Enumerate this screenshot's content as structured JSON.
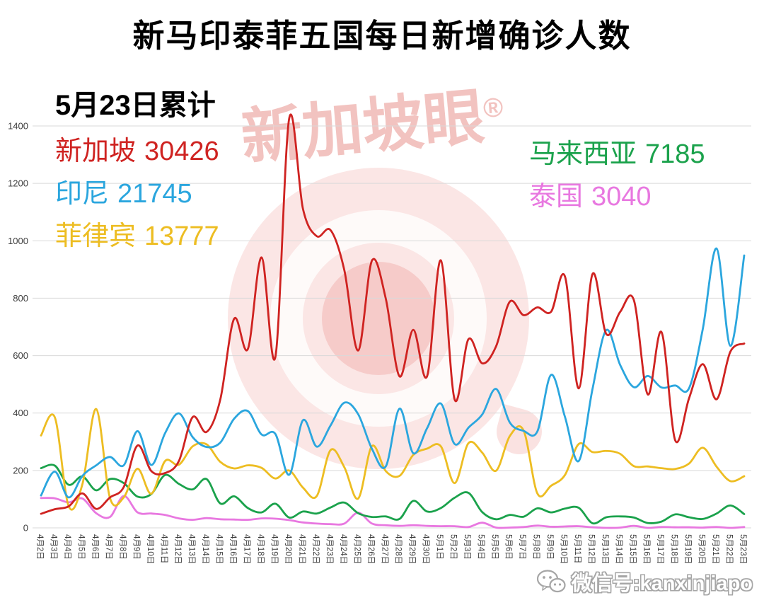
{
  "title": "新马印泰菲五国每日新增确诊人数",
  "summary": {
    "heading": "5月23日累计",
    "items": [
      {
        "label": "新加坡",
        "value": "30426",
        "color": "#cf2321"
      },
      {
        "label": "印尼",
        "value": "21745",
        "color": "#2ba6de"
      },
      {
        "label": "菲律宾",
        "value": "13777",
        "color": "#edbd22"
      },
      {
        "label": "马来西亚",
        "value": "7185",
        "color": "#1ba24c"
      },
      {
        "label": "泰国",
        "value": "3040",
        "color": "#e878e0"
      }
    ]
  },
  "watermark": {
    "text": "新加坡眼",
    "registered": "®"
  },
  "footer": {
    "wechat_label": "微信号:kanxinjiapo"
  },
  "chart_data": {
    "type": "line",
    "title": "新马印泰菲五国每日新增确诊人数",
    "xlabel": "",
    "ylabel": "",
    "ylim": [
      0,
      1400
    ],
    "yticks": [
      0,
      200,
      400,
      600,
      800,
      1000,
      1200,
      1400
    ],
    "grid": true,
    "legend_position": "custom-annotations",
    "categories": [
      "4月2日",
      "4月3日",
      "4月4日",
      "4月5日",
      "4月6日",
      "4月7日",
      "4月8日",
      "4月9日",
      "4月10日",
      "4月11日",
      "4月12日",
      "4月13日",
      "4月14日",
      "4月15日",
      "4月16日",
      "4月17日",
      "4月18日",
      "4月19日",
      "4月20日",
      "4月21日",
      "4月22日",
      "4月23日",
      "4月24日",
      "4月25日",
      "4月26日",
      "4月27日",
      "4月28日",
      "4月29日",
      "4月30日",
      "5月1日",
      "5月2日",
      "5月3日",
      "5月4日",
      "5月5日",
      "5月6日",
      "5月7日",
      "5月8日",
      "5月9日",
      "5月10日",
      "5月11日",
      "5月12日",
      "5月13日",
      "5月14日",
      "5月15日",
      "5月16日",
      "5月17日",
      "5月18日",
      "5月19日",
      "5月20日",
      "5月21日",
      "5月22日",
      "5月23日"
    ],
    "series": [
      {
        "name": "新加坡",
        "color": "#cf2321",
        "values": [
          49,
          65,
          75,
          120,
          66,
          106,
          142,
          287,
          198,
          191,
          233,
          386,
          334,
          447,
          728,
          623,
          942,
          596,
          1426,
          1111,
          1016,
          1037,
          897,
          618,
          931,
          799,
          528,
          690,
          528,
          932,
          447,
          657,
          573,
          632,
          788,
          741,
          768,
          753,
          876,
          486,
          884,
          675,
          752,
          793,
          465,
          682,
          305,
          451,
          570,
          448,
          614,
          642
        ]
      },
      {
        "name": "印尼",
        "color": "#2ba6de",
        "values": [
          113,
          196,
          106,
          181,
          218,
          247,
          218,
          337,
          219,
          330,
          399,
          316,
          282,
          297,
          380,
          407,
          325,
          327,
          185,
          375,
          283,
          357,
          436,
          396,
          275,
          214,
          415,
          260,
          347,
          433,
          292,
          349,
          395,
          484,
          367,
          338,
          336,
          533,
          387,
          233,
          484,
          689,
          568,
          490,
          529,
          489,
          496,
          486,
          693,
          973,
          634,
          949
        ]
      },
      {
        "name": "菲律宾",
        "color": "#edbd22",
        "values": [
          322,
          385,
          76,
          152,
          414,
          104,
          106,
          206,
          119,
          233,
          220,
          284,
          291,
          230,
          207,
          218,
          209,
          172,
          200,
          140,
          111,
          271,
          211,
          102,
          285,
          198,
          181,
          254,
          276,
          284,
          156,
          295,
          262,
          199,
          320,
          339,
          120,
          147,
          184,
          292,
          264,
          268,
          258,
          215,
          214,
          208,
          205,
          224,
          279,
          213,
          163,
          180
        ]
      },
      {
        "name": "马来西亚",
        "color": "#1ba24c",
        "values": [
          208,
          217,
          150,
          179,
          131,
          170,
          156,
          109,
          118,
          184,
          153,
          134,
          170,
          85,
          110,
          69,
          54,
          84,
          36,
          57,
          50,
          71,
          88,
          51,
          38,
          40,
          31,
          94,
          57,
          69,
          105,
          122,
          55,
          30,
          45,
          39,
          68,
          54,
          67,
          70,
          16,
          37,
          40,
          36,
          17,
          22,
          47,
          37,
          31,
          50,
          78,
          48
        ]
      },
      {
        "name": "泰国",
        "color": "#e878e0",
        "values": [
          104,
          103,
          89,
          102,
          51,
          38,
          111,
          54,
          50,
          45,
          33,
          28,
          34,
          30,
          29,
          28,
          33,
          32,
          27,
          19,
          15,
          13,
          15,
          53,
          15,
          9,
          7,
          9,
          7,
          6,
          6,
          3,
          18,
          1,
          1,
          3,
          8,
          4,
          5,
          6,
          2,
          0,
          1,
          7,
          0,
          3,
          2,
          2,
          1,
          3,
          0,
          3
        ]
      }
    ]
  }
}
